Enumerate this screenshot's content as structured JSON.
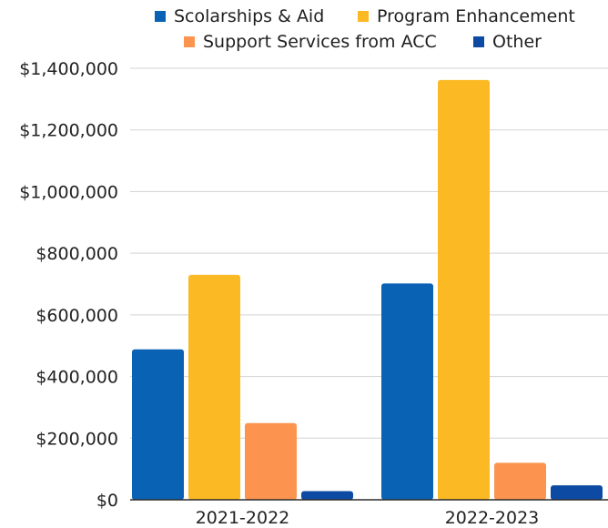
{
  "chart_data": {
    "type": "bar",
    "categories": [
      "2021-2022",
      "2022-2023"
    ],
    "series": [
      {
        "name": "Scolarships & Aid",
        "color": "#0a62b5",
        "values": [
          488000,
          702000
        ]
      },
      {
        "name": "Program Enhancement",
        "color": "#fbb924",
        "values": [
          730000,
          1362000
        ]
      },
      {
        "name": "Support Services from ACC",
        "color": "#fc9450",
        "values": [
          249000,
          120000
        ]
      },
      {
        "name": "Other",
        "color": "#0c4aa3",
        "values": [
          28000,
          47000
        ]
      }
    ],
    "ylim": [
      0,
      1400000
    ],
    "yticks": [
      0,
      200000,
      400000,
      600000,
      800000,
      1000000,
      1200000,
      1400000
    ],
    "ytick_labels": [
      "$0",
      "$200,000",
      "$400,000",
      "$600,000",
      "$800,000",
      "$1,000,000",
      "$1,200,000",
      "$1,400,000"
    ],
    "grid": true,
    "legend_position": "top",
    "gridline_color": "#d3d3d3"
  }
}
